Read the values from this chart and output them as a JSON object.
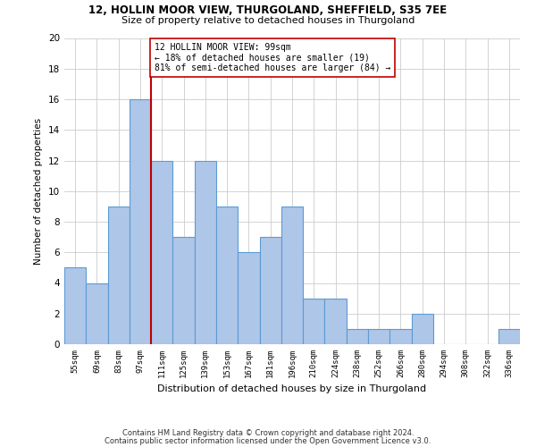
{
  "title1": "12, HOLLIN MOOR VIEW, THURGOLAND, SHEFFIELD, S35 7EE",
  "title2": "Size of property relative to detached houses in Thurgoland",
  "xlabel": "Distribution of detached houses by size in Thurgoland",
  "ylabel": "Number of detached properties",
  "categories": [
    "55sqm",
    "69sqm",
    "83sqm",
    "97sqm",
    "111sqm",
    "125sqm",
    "139sqm",
    "153sqm",
    "167sqm",
    "181sqm",
    "196sqm",
    "210sqm",
    "224sqm",
    "238sqm",
    "252sqm",
    "266sqm",
    "280sqm",
    "294sqm",
    "308sqm",
    "322sqm",
    "336sqm"
  ],
  "values": [
    5,
    4,
    9,
    16,
    12,
    7,
    12,
    9,
    6,
    7,
    9,
    3,
    3,
    1,
    1,
    1,
    2,
    0,
    0,
    0,
    1
  ],
  "bar_color": "#aec6e8",
  "bar_edge_color": "#5b9bd5",
  "vline_x": 3.5,
  "vline_color": "#c00000",
  "annotation_text": "12 HOLLIN MOOR VIEW: 99sqm\n← 18% of detached houses are smaller (19)\n81% of semi-detached houses are larger (84) →",
  "annotation_border_color": "#c00000",
  "ylim": [
    0,
    20
  ],
  "yticks": [
    0,
    2,
    4,
    6,
    8,
    10,
    12,
    14,
    16,
    18,
    20
  ],
  "footer1": "Contains HM Land Registry data © Crown copyright and database right 2024.",
  "footer2": "Contains public sector information licensed under the Open Government Licence v3.0.",
  "bg_color": "#ffffff",
  "grid_color": "#cccccc"
}
